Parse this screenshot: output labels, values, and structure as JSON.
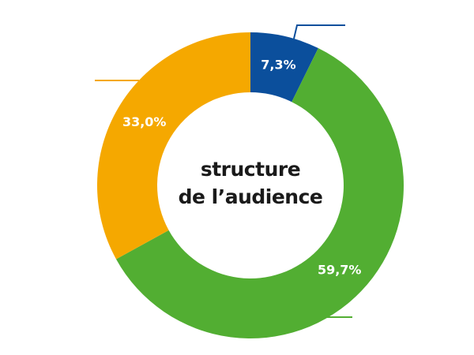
{
  "chart_data": {
    "type": "pie",
    "center_text": [
      "structure",
      "de l’audience"
    ],
    "values": [
      7.3,
      59.7,
      33.0
    ],
    "value_labels": [
      "7,3%",
      "59,7%",
      "33,0%"
    ],
    "colors": [
      "#0b4f9c",
      "#52ae32",
      "#f5a800"
    ]
  }
}
